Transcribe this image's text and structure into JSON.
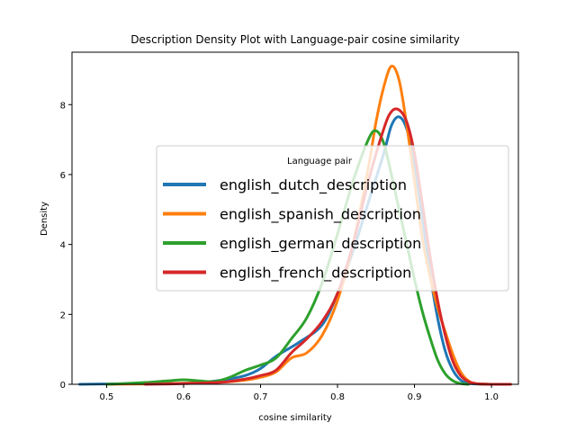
{
  "chart_data": {
    "type": "line",
    "title": "Description Density Plot with Language-pair cosine similarity",
    "xlabel": "cosine similarity",
    "ylabel": "Density",
    "xlim": [
      0.455,
      1.035
    ],
    "ylim": [
      0,
      9.5
    ],
    "xticks": [
      "0.5",
      "0.6",
      "0.7",
      "0.8",
      "0.9",
      "1.0"
    ],
    "xtick_values": [
      0.5,
      0.6,
      0.7,
      0.8,
      0.9,
      1.0
    ],
    "yticks": [
      "0",
      "2",
      "4",
      "6",
      "8"
    ],
    "ytick_values": [
      0,
      2,
      4,
      6,
      8
    ],
    "grid": false,
    "legend": {
      "title": "Language pair",
      "placement": "center-right"
    },
    "series": [
      {
        "name": "english_dutch_description",
        "color": "#1f77b4",
        "points": [
          [
            0.465,
            0.0
          ],
          [
            0.5,
            0.01
          ],
          [
            0.55,
            0.02
          ],
          [
            0.6,
            0.03
          ],
          [
            0.62,
            0.05
          ],
          [
            0.65,
            0.12
          ],
          [
            0.68,
            0.25
          ],
          [
            0.7,
            0.45
          ],
          [
            0.72,
            0.8
          ],
          [
            0.75,
            1.2
          ],
          [
            0.78,
            1.7
          ],
          [
            0.8,
            2.6
          ],
          [
            0.82,
            3.8
          ],
          [
            0.84,
            5.2
          ],
          [
            0.86,
            6.6
          ],
          [
            0.87,
            7.4
          ],
          [
            0.88,
            7.65
          ],
          [
            0.89,
            7.3
          ],
          [
            0.9,
            6.3
          ],
          [
            0.91,
            4.8
          ],
          [
            0.92,
            3.2
          ],
          [
            0.93,
            1.9
          ],
          [
            0.94,
            0.95
          ],
          [
            0.95,
            0.4
          ],
          [
            0.96,
            0.12
          ],
          [
            0.97,
            0.03
          ],
          [
            0.98,
            0.01
          ],
          [
            1.0,
            0.0
          ]
        ]
      },
      {
        "name": "english_spanish_description",
        "color": "#ff7f0e",
        "points": [
          [
            0.5,
            0.0
          ],
          [
            0.55,
            0.01
          ],
          [
            0.6,
            0.03
          ],
          [
            0.65,
            0.06
          ],
          [
            0.68,
            0.12
          ],
          [
            0.7,
            0.2
          ],
          [
            0.72,
            0.35
          ],
          [
            0.74,
            0.75
          ],
          [
            0.76,
            0.9
          ],
          [
            0.78,
            1.4
          ],
          [
            0.8,
            2.4
          ],
          [
            0.82,
            4.0
          ],
          [
            0.84,
            6.2
          ],
          [
            0.85,
            7.5
          ],
          [
            0.86,
            8.5
          ],
          [
            0.87,
            9.1
          ],
          [
            0.88,
            8.7
          ],
          [
            0.89,
            7.4
          ],
          [
            0.9,
            5.8
          ],
          [
            0.91,
            4.2
          ],
          [
            0.92,
            3.1
          ],
          [
            0.93,
            2.2
          ],
          [
            0.94,
            1.5
          ],
          [
            0.95,
            0.85
          ],
          [
            0.96,
            0.35
          ],
          [
            0.97,
            0.1
          ],
          [
            0.98,
            0.02
          ],
          [
            1.0,
            0.0
          ]
        ]
      },
      {
        "name": "english_german_description",
        "color": "#2ca02c",
        "points": [
          [
            0.5,
            0.0
          ],
          [
            0.55,
            0.05
          ],
          [
            0.58,
            0.1
          ],
          [
            0.6,
            0.13
          ],
          [
            0.62,
            0.1
          ],
          [
            0.64,
            0.08
          ],
          [
            0.66,
            0.2
          ],
          [
            0.68,
            0.4
          ],
          [
            0.7,
            0.55
          ],
          [
            0.72,
            0.75
          ],
          [
            0.74,
            1.3
          ],
          [
            0.76,
            1.9
          ],
          [
            0.78,
            2.9
          ],
          [
            0.8,
            4.3
          ],
          [
            0.82,
            5.8
          ],
          [
            0.84,
            7.0
          ],
          [
            0.85,
            7.25
          ],
          [
            0.86,
            6.9
          ],
          [
            0.87,
            6.0
          ],
          [
            0.88,
            5.0
          ],
          [
            0.89,
            4.0
          ],
          [
            0.9,
            3.0
          ],
          [
            0.91,
            2.1
          ],
          [
            0.92,
            1.35
          ],
          [
            0.93,
            0.7
          ],
          [
            0.94,
            0.3
          ],
          [
            0.95,
            0.1
          ],
          [
            0.96,
            0.02
          ],
          [
            0.97,
            0.0
          ]
        ]
      },
      {
        "name": "english_french_description",
        "color": "#d62728",
        "points": [
          [
            0.55,
            0.0
          ],
          [
            0.6,
            0.02
          ],
          [
            0.65,
            0.06
          ],
          [
            0.68,
            0.15
          ],
          [
            0.7,
            0.25
          ],
          [
            0.72,
            0.4
          ],
          [
            0.74,
            0.9
          ],
          [
            0.76,
            1.3
          ],
          [
            0.78,
            1.8
          ],
          [
            0.8,
            2.6
          ],
          [
            0.82,
            4.0
          ],
          [
            0.84,
            5.8
          ],
          [
            0.86,
            7.3
          ],
          [
            0.87,
            7.8
          ],
          [
            0.88,
            7.85
          ],
          [
            0.89,
            7.5
          ],
          [
            0.9,
            6.6
          ],
          [
            0.91,
            5.2
          ],
          [
            0.92,
            3.7
          ],
          [
            0.93,
            2.4
          ],
          [
            0.94,
            1.4
          ],
          [
            0.95,
            0.65
          ],
          [
            0.96,
            0.25
          ],
          [
            0.97,
            0.08
          ],
          [
            0.98,
            0.02
          ],
          [
            1.0,
            0.0
          ],
          [
            1.025,
            0.0
          ]
        ]
      }
    ]
  }
}
